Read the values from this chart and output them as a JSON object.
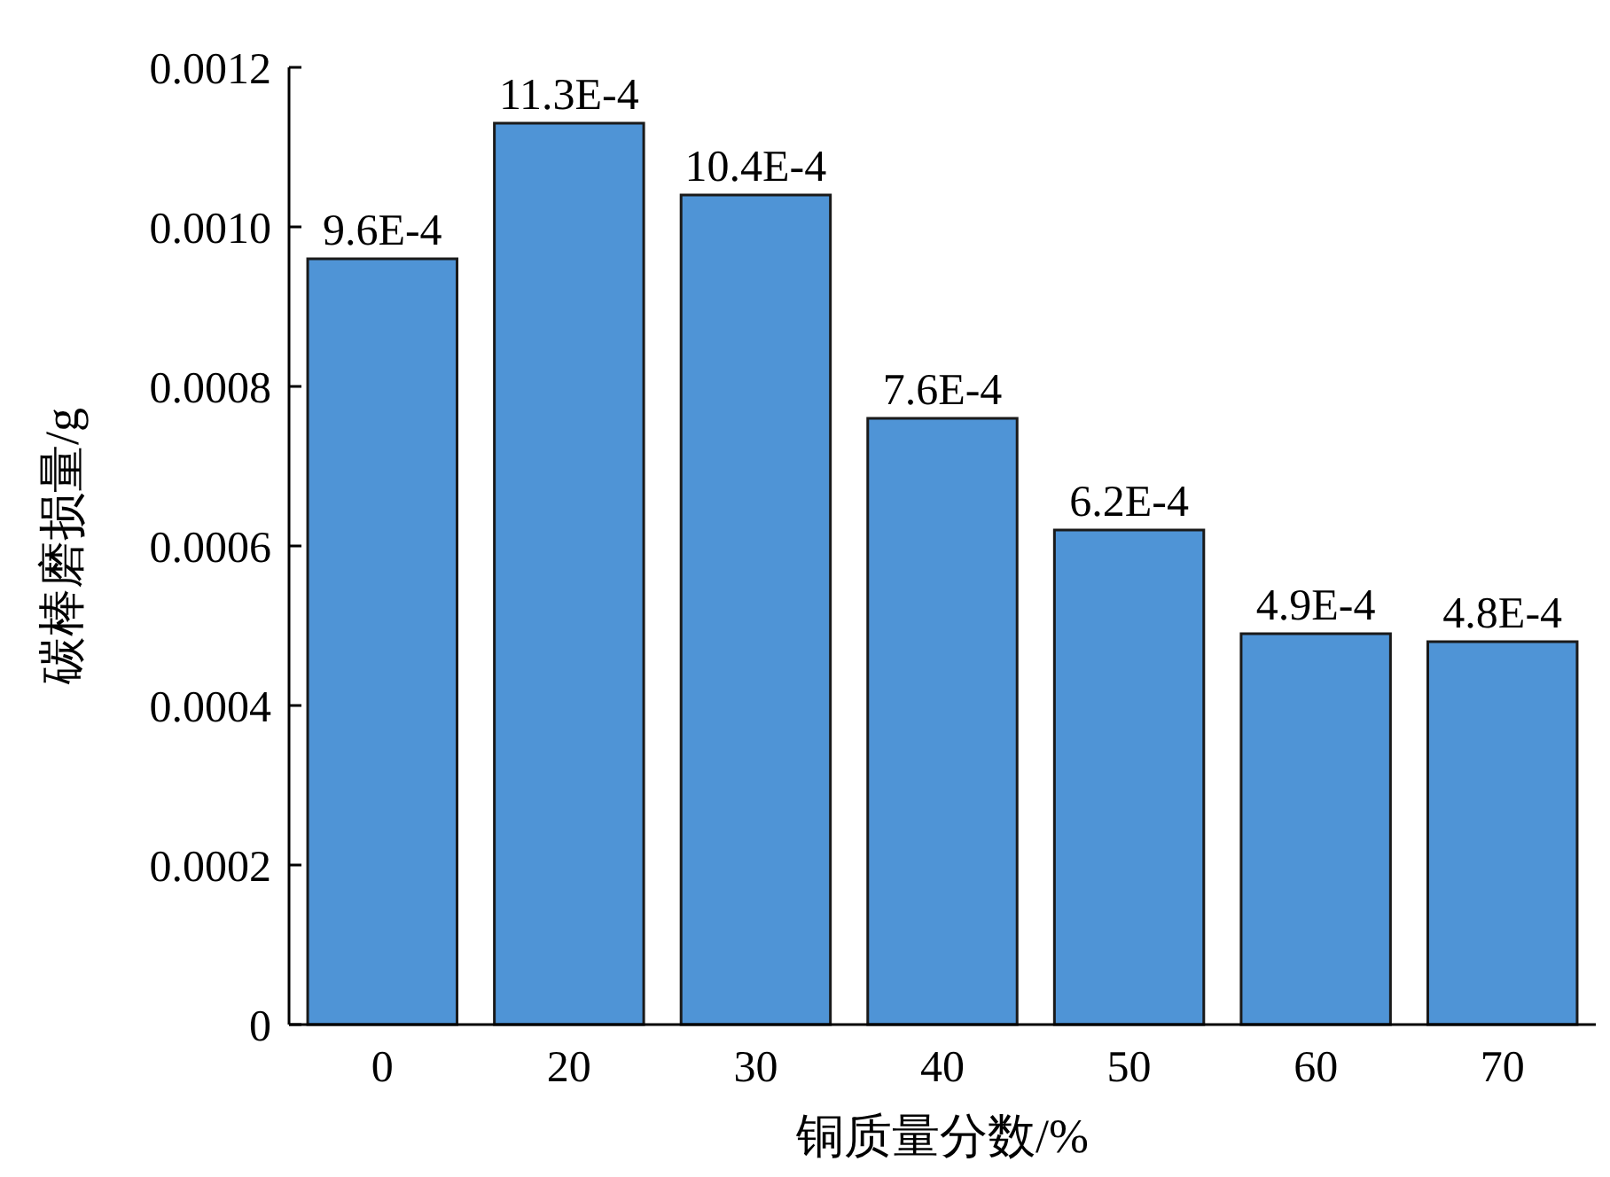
{
  "chart_data": {
    "type": "bar",
    "xlabel": "铜质量分数/%",
    "ylabel": "碳棒磨损量/g",
    "categories": [
      "0",
      "20",
      "30",
      "40",
      "50",
      "60",
      "70"
    ],
    "values": [
      0.00096,
      0.00113,
      0.00104,
      0.00076,
      0.00062,
      0.00049,
      0.00048
    ],
    "value_labels": [
      "9.6E-4",
      "11.3E-4",
      "10.4E-4",
      "7.6E-4",
      "6.2E-4",
      "4.9E-4",
      "4.8E-4"
    ],
    "color": "#4f94d6",
    "ylim": [
      0,
      0.0012
    ],
    "yticks": [
      0,
      0.0002,
      0.0004,
      0.0006,
      0.0008,
      {
        "value": 0.001,
        "label": "0.0010"
      },
      0.0012
    ],
    "grid": false
  }
}
